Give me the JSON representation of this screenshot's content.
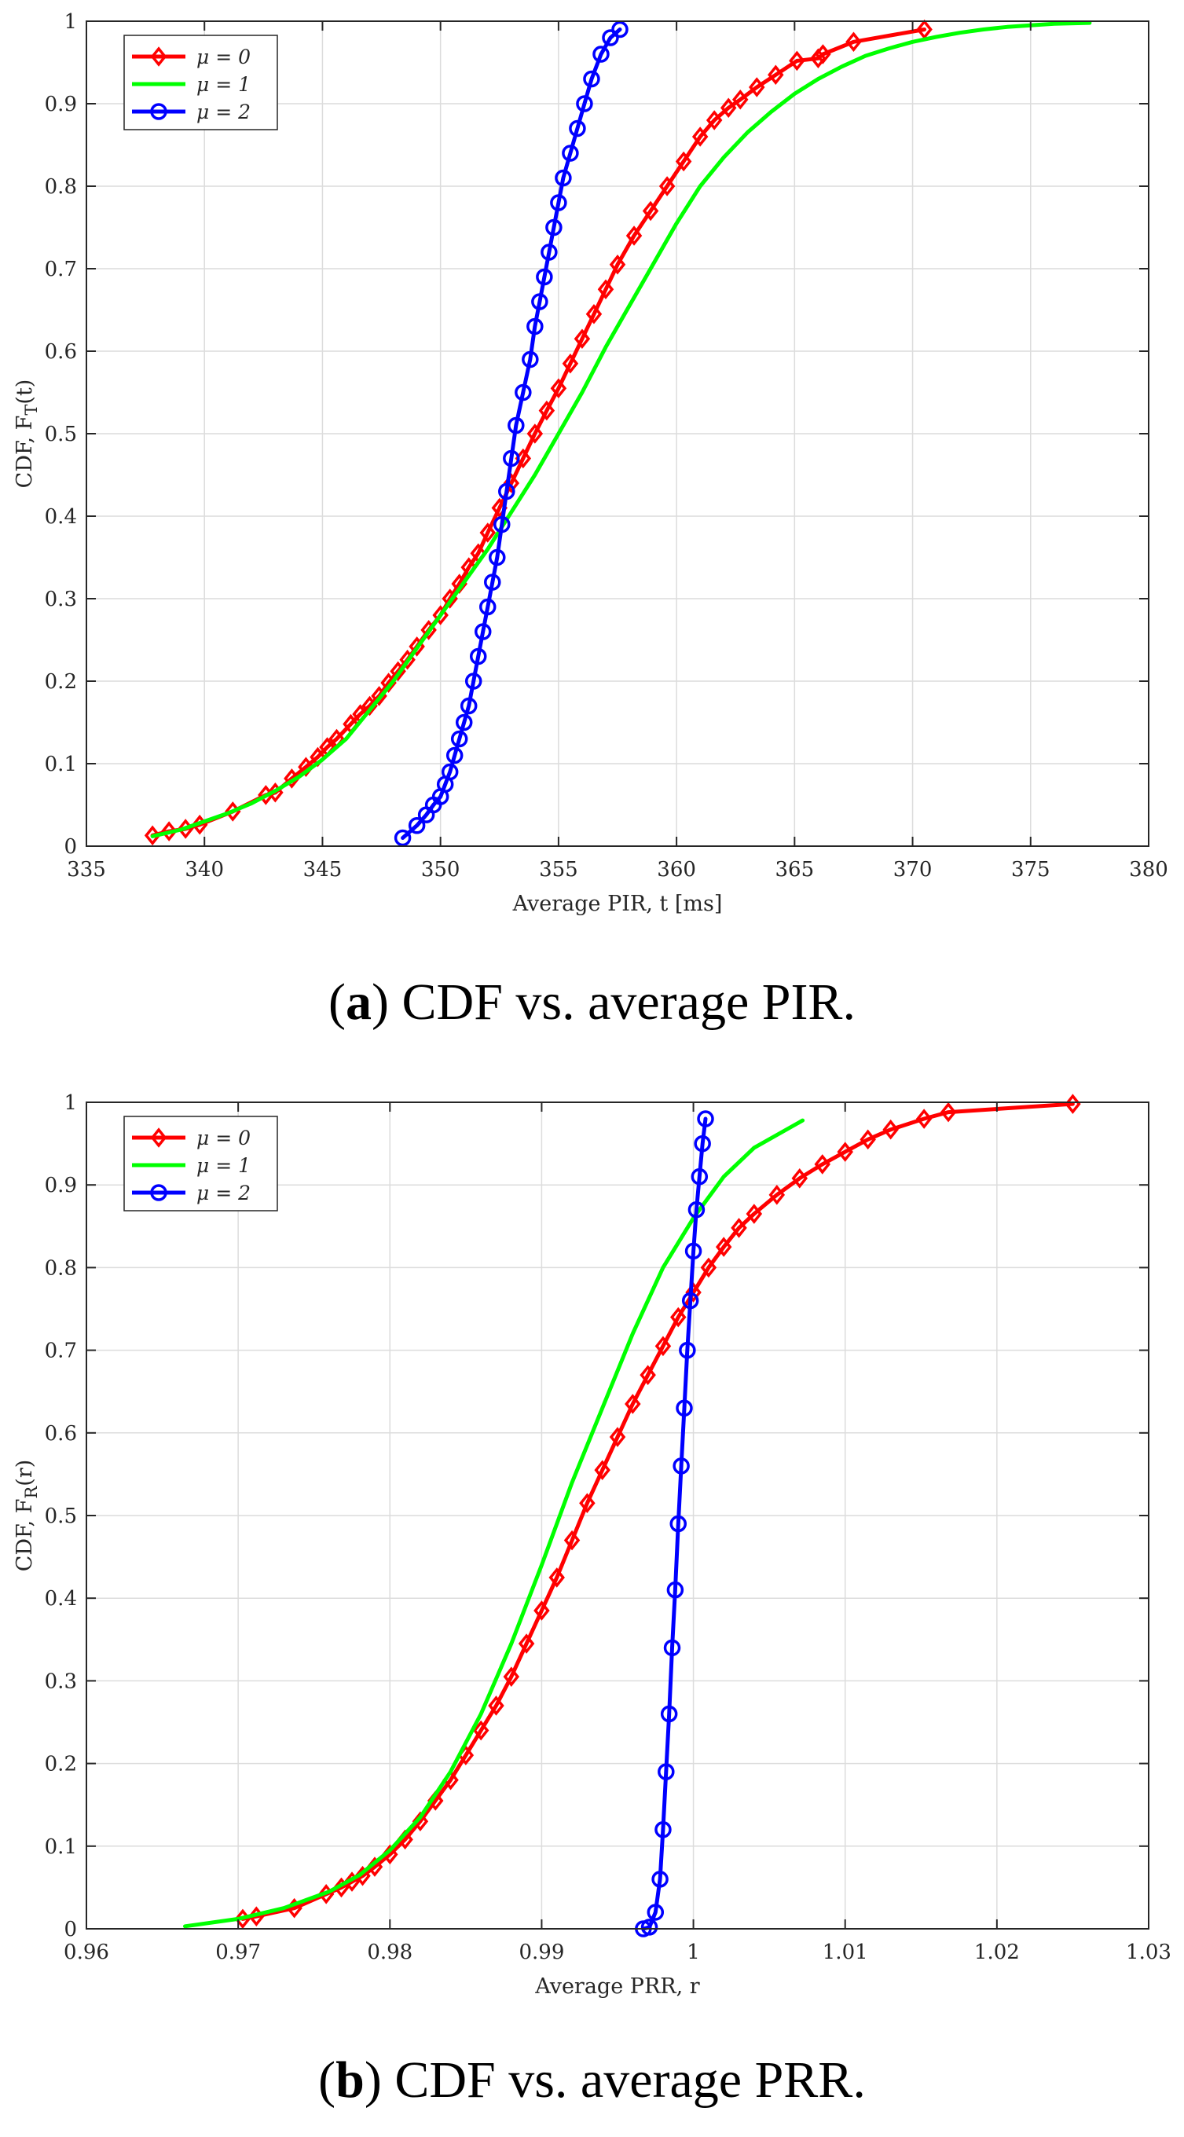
{
  "chart_data": [
    {
      "type": "line",
      "id": "a",
      "xlabel": "Average PIR, t [ms]",
      "ylabel_main": "CDF, F",
      "ylabel_sub": "T",
      "ylabel_tail": "(t)",
      "xlim": [
        335,
        380
      ],
      "ylim": [
        0,
        1
      ],
      "xticks": [
        335,
        340,
        345,
        350,
        355,
        360,
        365,
        370,
        375,
        380
      ],
      "xtick_labels": [
        "335",
        "340",
        "345",
        "350",
        "355",
        "360",
        "365",
        "370",
        "375",
        "380"
      ],
      "yticks": [
        0,
        0.1,
        0.2,
        0.3,
        0.4,
        0.5,
        0.6,
        0.7,
        0.8,
        0.9,
        1
      ],
      "ytick_labels": [
        "0",
        "0.1",
        "0.2",
        "0.3",
        "0.4",
        "0.5",
        "0.6",
        "0.7",
        "0.8",
        "0.9",
        "1"
      ],
      "grid": true,
      "legend_position": "top-left",
      "series": [
        {
          "name": "μ = 0",
          "color": "#ff0000",
          "marker": "diamond",
          "x": [
            337.8,
            338.5,
            339.2,
            339.8,
            341.2,
            342.6,
            343.0,
            343.7,
            344.3,
            344.8,
            345.2,
            345.6,
            346.2,
            346.6,
            347.0,
            347.4,
            347.8,
            348.2,
            348.6,
            349.0,
            349.5,
            350.0,
            350.4,
            350.8,
            351.2,
            351.6,
            352.0,
            352.5,
            353.0,
            353.5,
            354.0,
            354.5,
            355.0,
            355.5,
            356.0,
            356.5,
            357.0,
            357.5,
            358.2,
            358.9,
            359.6,
            360.3,
            361.0,
            361.6,
            362.2,
            362.7,
            363.4,
            364.2,
            365.1,
            366.0,
            366.2,
            367.5,
            370.5
          ],
          "y": [
            0.013,
            0.018,
            0.021,
            0.026,
            0.042,
            0.062,
            0.065,
            0.082,
            0.096,
            0.108,
            0.12,
            0.13,
            0.148,
            0.16,
            0.17,
            0.182,
            0.198,
            0.212,
            0.226,
            0.242,
            0.262,
            0.28,
            0.3,
            0.318,
            0.338,
            0.355,
            0.38,
            0.41,
            0.44,
            0.47,
            0.5,
            0.528,
            0.555,
            0.585,
            0.615,
            0.645,
            0.675,
            0.705,
            0.74,
            0.77,
            0.8,
            0.83,
            0.86,
            0.88,
            0.895,
            0.905,
            0.92,
            0.935,
            0.952,
            0.955,
            0.96,
            0.975,
            0.99
          ]
        },
        {
          "name": "μ = 1",
          "color": "#00ff00",
          "marker": "none",
          "x": [
            337.8,
            339,
            340,
            341,
            342,
            343,
            344,
            345,
            346,
            347,
            348,
            349,
            350,
            351,
            352,
            353,
            354,
            355,
            356,
            357,
            358,
            359,
            360,
            361,
            362,
            363,
            364,
            365,
            366,
            367,
            368,
            369,
            370,
            371,
            372,
            373,
            374,
            375,
            376,
            377.5
          ],
          "y": [
            0.012,
            0.02,
            0.03,
            0.04,
            0.052,
            0.067,
            0.084,
            0.105,
            0.13,
            0.165,
            0.2,
            0.24,
            0.28,
            0.32,
            0.36,
            0.405,
            0.45,
            0.5,
            0.55,
            0.605,
            0.655,
            0.705,
            0.755,
            0.8,
            0.835,
            0.865,
            0.89,
            0.912,
            0.93,
            0.945,
            0.958,
            0.967,
            0.975,
            0.981,
            0.986,
            0.99,
            0.993,
            0.995,
            0.997,
            0.998
          ]
        },
        {
          "name": "μ = 2",
          "color": "#0000ff",
          "marker": "circle",
          "x": [
            348.4,
            349.0,
            349.4,
            349.7,
            350.0,
            350.2,
            350.4,
            350.6,
            350.8,
            351.0,
            351.2,
            351.4,
            351.6,
            351.8,
            352.0,
            352.2,
            352.4,
            352.6,
            352.8,
            353.0,
            353.2,
            353.5,
            353.8,
            354.0,
            354.2,
            354.4,
            354.6,
            354.8,
            355.0,
            355.2,
            355.5,
            355.8,
            356.1,
            356.4,
            356.8,
            357.2,
            357.6
          ],
          "y": [
            0.01,
            0.025,
            0.038,
            0.05,
            0.06,
            0.075,
            0.09,
            0.11,
            0.13,
            0.15,
            0.17,
            0.2,
            0.23,
            0.26,
            0.29,
            0.32,
            0.35,
            0.39,
            0.43,
            0.47,
            0.51,
            0.55,
            0.59,
            0.63,
            0.66,
            0.69,
            0.72,
            0.75,
            0.78,
            0.81,
            0.84,
            0.87,
            0.9,
            0.93,
            0.96,
            0.98,
            0.99
          ]
        }
      ]
    },
    {
      "type": "line",
      "id": "b",
      "xlabel": "Average PRR, r",
      "ylabel_main": "CDF, F",
      "ylabel_sub": "R",
      "ylabel_tail": "(r)",
      "xlim": [
        0.96,
        1.03
      ],
      "ylim": [
        0,
        1
      ],
      "xticks": [
        0.96,
        0.97,
        0.98,
        0.99,
        1.0,
        1.01,
        1.02,
        1.03
      ],
      "xtick_labels": [
        "0.96",
        "0.97",
        "0.98",
        "0.99",
        "1",
        "1.01",
        "1.02",
        "1.03"
      ],
      "yticks": [
        0,
        0.1,
        0.2,
        0.3,
        0.4,
        0.5,
        0.6,
        0.7,
        0.8,
        0.9,
        1
      ],
      "ytick_labels": [
        "0",
        "0.1",
        "0.2",
        "0.3",
        "0.4",
        "0.5",
        "0.6",
        "0.7",
        "0.8",
        "0.9",
        "1"
      ],
      "grid": true,
      "legend_position": "top-left",
      "series": [
        {
          "name": "μ = 0",
          "color": "#ff0000",
          "marker": "diamond",
          "x": [
            0.9703,
            0.9712,
            0.9737,
            0.9758,
            0.9768,
            0.9775,
            0.9782,
            0.979,
            0.98,
            0.981,
            0.982,
            0.983,
            0.984,
            0.985,
            0.986,
            0.987,
            0.988,
            0.989,
            0.99,
            0.991,
            0.992,
            0.993,
            0.994,
            0.995,
            0.996,
            0.997,
            0.998,
            0.999,
            1.0,
            1.001,
            1.002,
            1.003,
            1.004,
            1.0055,
            1.007,
            1.0085,
            1.01,
            1.0115,
            1.013,
            1.0152,
            1.0168,
            1.025
          ],
          "y": [
            0.012,
            0.015,
            0.025,
            0.042,
            0.05,
            0.057,
            0.064,
            0.075,
            0.09,
            0.108,
            0.13,
            0.155,
            0.18,
            0.21,
            0.24,
            0.27,
            0.305,
            0.345,
            0.385,
            0.425,
            0.47,
            0.515,
            0.555,
            0.595,
            0.635,
            0.67,
            0.705,
            0.74,
            0.77,
            0.8,
            0.825,
            0.848,
            0.865,
            0.888,
            0.908,
            0.925,
            0.94,
            0.955,
            0.967,
            0.98,
            0.988,
            0.998
          ]
        },
        {
          "name": "μ = 1",
          "color": "#00ff00",
          "marker": "none",
          "x": [
            0.9665,
            0.97,
            0.973,
            0.976,
            0.978,
            0.98,
            0.982,
            0.984,
            0.986,
            0.988,
            0.99,
            0.992,
            0.994,
            0.996,
            0.998,
            1.0,
            1.002,
            1.004,
            1.0072
          ],
          "y": [
            0.003,
            0.012,
            0.025,
            0.045,
            0.065,
            0.095,
            0.135,
            0.19,
            0.26,
            0.345,
            0.44,
            0.54,
            0.63,
            0.72,
            0.8,
            0.86,
            0.91,
            0.945,
            0.978
          ]
        },
        {
          "name": "μ = 2",
          "color": "#0000ff",
          "marker": "circle",
          "x": [
            0.9967,
            0.9971,
            0.9975,
            0.9978,
            0.998,
            0.9982,
            0.9984,
            0.9986,
            0.9988,
            0.999,
            0.9992,
            0.9994,
            0.9996,
            0.9998,
            1.0,
            1.0002,
            1.0004,
            1.0006,
            1.0008
          ],
          "y": [
            0.0,
            0.002,
            0.02,
            0.06,
            0.12,
            0.19,
            0.26,
            0.34,
            0.41,
            0.49,
            0.56,
            0.63,
            0.7,
            0.76,
            0.82,
            0.87,
            0.91,
            0.95,
            0.98
          ]
        }
      ]
    }
  ],
  "captions": [
    {
      "label": "a",
      "open": "(",
      "close": ")",
      "text": " CDF vs. average PIR."
    },
    {
      "label": "b",
      "open": "(",
      "close": ")",
      "text": " CDF vs. average PRR."
    }
  ]
}
